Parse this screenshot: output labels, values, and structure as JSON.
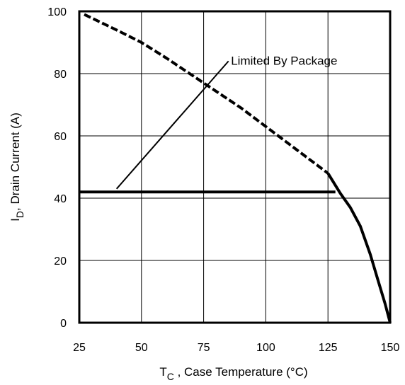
{
  "chart_data": {
    "type": "line",
    "xlabel_main": "T",
    "xlabel_sub": "C",
    "xlabel_rest": " , Case Temperature (°C)",
    "ylabel_main": "I",
    "ylabel_sub": "D",
    "ylabel_rest": ",  Drain Current (A)",
    "xlim": [
      25,
      150
    ],
    "ylim": [
      0,
      100
    ],
    "x_ticks": [
      25,
      50,
      75,
      100,
      125,
      150
    ],
    "y_ticks": [
      0,
      20,
      40,
      60,
      80,
      100
    ],
    "grid": true,
    "annotation": "Limited By Package",
    "series": [
      {
        "style": "dashed",
        "x": [
          27,
          40,
          50,
          60,
          75,
          90,
          100,
          110,
          120,
          125
        ],
        "y": [
          99,
          94,
          90,
          85,
          77,
          69,
          63,
          57,
          51,
          48
        ]
      },
      {
        "style": "solid",
        "x": [
          125,
          130,
          134,
          138,
          142,
          145,
          148,
          150
        ],
        "y": [
          48,
          41.5,
          37,
          31,
          22,
          14,
          6,
          0
        ]
      },
      {
        "style": "solid",
        "x": [
          25,
          128
        ],
        "y": [
          42,
          42
        ]
      }
    ]
  }
}
